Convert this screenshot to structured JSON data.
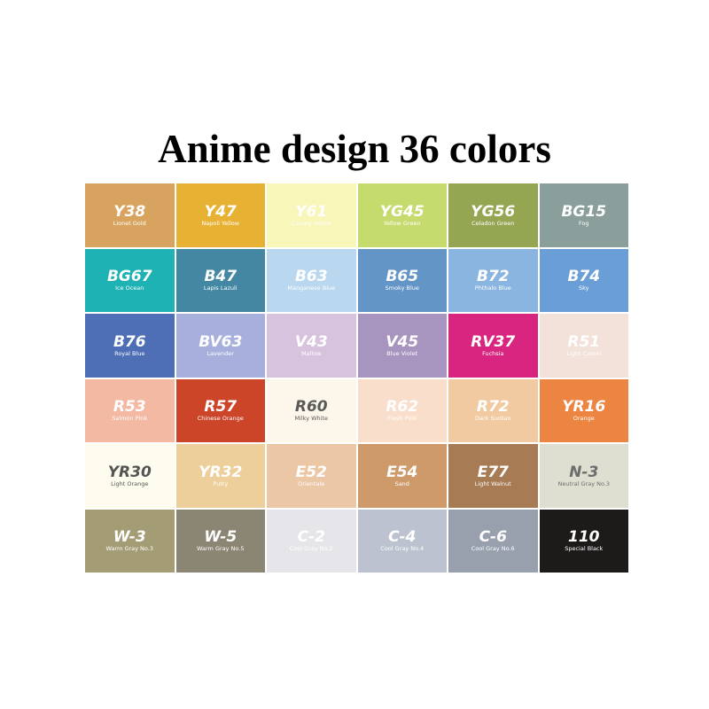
{
  "title": "Anime design 36 colors",
  "swatches": [
    {
      "code": "Y38",
      "name": "Lionet Gold",
      "color": "#d8a35e",
      "text": "#ffffff"
    },
    {
      "code": "Y47",
      "name": "Napoli Yellow",
      "color": "#e7b234",
      "text": "#ffffff"
    },
    {
      "code": "Y61",
      "name": "Canary Yellow",
      "color": "#f8f6b8",
      "text": "#ffffff"
    },
    {
      "code": "YG45",
      "name": "Yellow Green",
      "color": "#c6db6d",
      "text": "#ffffff"
    },
    {
      "code": "YG56",
      "name": "Celadon Green",
      "color": "#95a653",
      "text": "#ffffff"
    },
    {
      "code": "BG15",
      "name": "Fog",
      "color": "#8a9e9b",
      "text": "#ffffff"
    },
    {
      "code": "BG67",
      "name": "Ice Ocean",
      "color": "#1fb2b4",
      "text": "#ffffff"
    },
    {
      "code": "B47",
      "name": "Lapis Lazuli",
      "color": "#4387a3",
      "text": "#ffffff"
    },
    {
      "code": "B63",
      "name": "Manganese Blue",
      "color": "#b9d7ee",
      "text": "#ffffff"
    },
    {
      "code": "B65",
      "name": "Smoky Blue",
      "color": "#6395c6",
      "text": "#ffffff"
    },
    {
      "code": "B72",
      "name": "Phthalo Blue",
      "color": "#8ab5e1",
      "text": "#ffffff"
    },
    {
      "code": "B74",
      "name": "Sky",
      "color": "#6a9ed6",
      "text": "#ffffff"
    },
    {
      "code": "B76",
      "name": "Royal Blue",
      "color": "#4e6eb5",
      "text": "#ffffff"
    },
    {
      "code": "BV63",
      "name": "Lavender",
      "color": "#a7b0dd",
      "text": "#ffffff"
    },
    {
      "code": "V43",
      "name": "Mallow",
      "color": "#d8c3de",
      "text": "#ffffff"
    },
    {
      "code": "V45",
      "name": "Blue Violet",
      "color": "#a895bf",
      "text": "#ffffff"
    },
    {
      "code": "RV37",
      "name": "Fuchsia",
      "color": "#d8257f",
      "text": "#ffffff"
    },
    {
      "code": "R51",
      "name": "Light Camel",
      "color": "#f2e2da",
      "text": "#ffffff"
    },
    {
      "code": "R53",
      "name": "Salmon Pink",
      "color": "#f3b9a2",
      "text": "#ffffff"
    },
    {
      "code": "R57",
      "name": "Chinese Orange",
      "color": "#cc4529",
      "text": "#ffffff"
    },
    {
      "code": "R60",
      "name": "Milky White",
      "color": "#fdf6ea",
      "text": "#5a5a58"
    },
    {
      "code": "R62",
      "name": "Flesh Pink",
      "color": "#f9dfcb",
      "text": "#ffffff"
    },
    {
      "code": "R72",
      "name": "Dark Suntan",
      "color": "#f1caa1",
      "text": "#ffffff"
    },
    {
      "code": "YR16",
      "name": "Orange",
      "color": "#ec8541",
      "text": "#ffffff"
    },
    {
      "code": "YR30",
      "name": "Light Orange",
      "color": "#fefcee",
      "text": "#555555"
    },
    {
      "code": "YR32",
      "name": "Putty",
      "color": "#edcf9b",
      "text": "#ffffff"
    },
    {
      "code": "E52",
      "name": "Orientale",
      "color": "#ebc7a6",
      "text": "#ffffff"
    },
    {
      "code": "E54",
      "name": "Sand",
      "color": "#cf9a6a",
      "text": "#ffffff"
    },
    {
      "code": "E77",
      "name": "Light Walnut",
      "color": "#a77b54",
      "text": "#ffffff"
    },
    {
      "code": "N-3",
      "name": "Neutral Gray No.3",
      "color": "#dedfd1",
      "text": "#6d6e6c"
    },
    {
      "code": "W-3",
      "name": "Warm Gray No.3",
      "color": "#a39c75",
      "text": "#ffffff"
    },
    {
      "code": "W-5",
      "name": "Warm Gray No.5",
      "color": "#8b8574",
      "text": "#ffffff"
    },
    {
      "code": "C-2",
      "name": "Cool Gray No.2",
      "color": "#e6e6ea",
      "text": "#ffffff"
    },
    {
      "code": "C-4",
      "name": "Cool Gray No.4",
      "color": "#bcc2cf",
      "text": "#ffffff"
    },
    {
      "code": "C-6",
      "name": "Cool Gray No.6",
      "color": "#98a0ae",
      "text": "#ffffff"
    },
    {
      "code": "110",
      "name": "Special Black",
      "color": "#1d1a1a",
      "text": "#ffffff"
    }
  ]
}
